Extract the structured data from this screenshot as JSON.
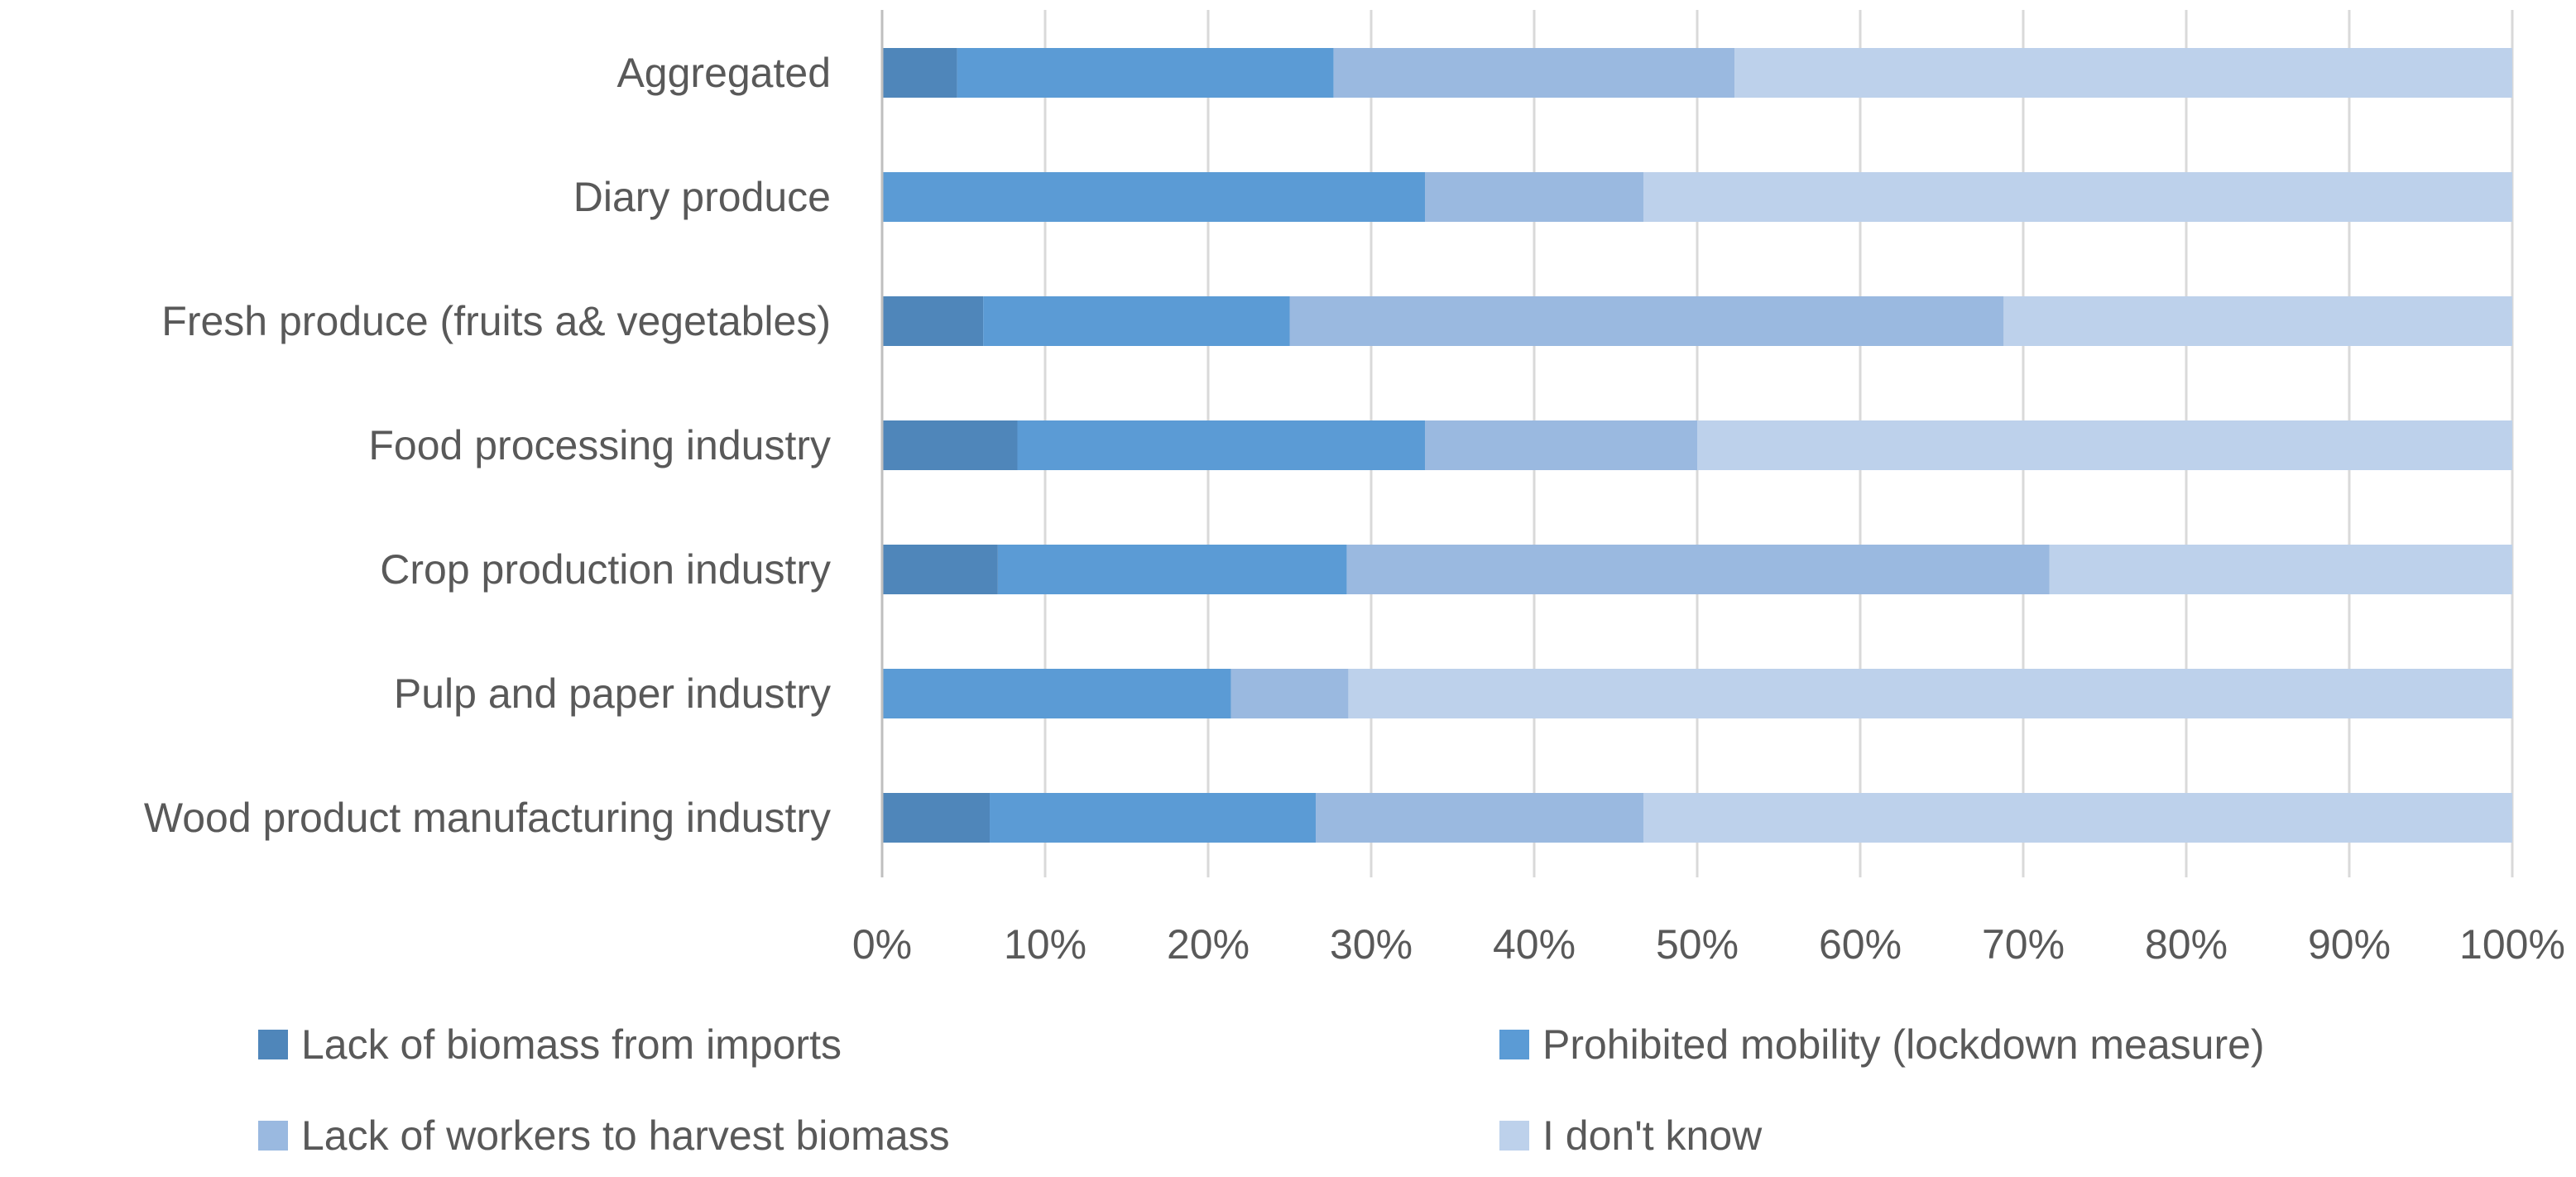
{
  "chart_data": {
    "type": "bar",
    "orientation": "horizontal",
    "stacked": "percent",
    "title": "",
    "xlabel": "",
    "ylabel": "",
    "xlim": [
      0,
      100
    ],
    "grid": true,
    "legend_position": "bottom",
    "categories": [
      "Aggregated",
      "Diary produce",
      "Fresh produce (fruits a& vegetables)",
      "Food processing industry",
      "Crop production industry",
      "Pulp and paper industry",
      "Wood product manufacturing industry"
    ],
    "x_ticks": [
      "0%",
      "10%",
      "20%",
      "30%",
      "40%",
      "50%",
      "60%",
      "70%",
      "80%",
      "90%",
      "100%"
    ],
    "series": [
      {
        "name": "Lack of biomass from imports",
        "color": "#4f86ba",
        "values": [
          4.6,
          0,
          6.2,
          8.3,
          7.1,
          0,
          6.6
        ]
      },
      {
        "name": "Prohibited mobility (lockdown measure)",
        "color": "#5b9bd5",
        "values": [
          23.1,
          33.3,
          18.8,
          25.0,
          21.4,
          21.4,
          20.0
        ]
      },
      {
        "name": "Lack of workers to harvest biomass",
        "color": "#9ab9e0",
        "values": [
          24.6,
          13.4,
          43.8,
          16.7,
          43.1,
          7.2,
          20.1
        ]
      },
      {
        "name": "I don't know",
        "color": "#bdd1eb",
        "values": [
          47.7,
          53.3,
          31.2,
          50.0,
          28.4,
          71.4,
          53.3
        ]
      }
    ],
    "gridline_color": "#d9d9d9",
    "axis_color": "#bfbfbf"
  }
}
